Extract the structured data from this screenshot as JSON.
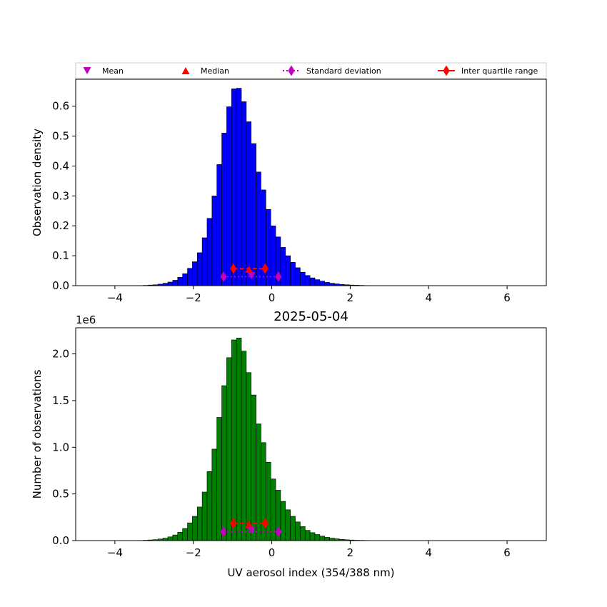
{
  "figure": {
    "width": 850,
    "height": 850
  },
  "legend": {
    "entries": [
      {
        "label": "Mean",
        "marker": "triangle-down",
        "color": "#bf00bf"
      },
      {
        "label": "Median",
        "marker": "triangle-up",
        "color": "#ff0000"
      },
      {
        "label": "Standard deviation",
        "marker": "diamond-dotted-line",
        "color": "#bf00bf"
      },
      {
        "label": "Inter quartile range",
        "marker": "diamond-dashed-line",
        "color": "#ff0000"
      }
    ]
  },
  "chart_data": [
    {
      "type": "bar",
      "title": "",
      "xlabel": "",
      "ylabel": "Observation density",
      "xlim": [
        -5,
        7
      ],
      "ylim": [
        0,
        0.69
      ],
      "xticks": [
        -4,
        -2,
        0,
        2,
        4,
        6
      ],
      "xtick_labels": [
        "−4",
        "−2",
        "0",
        "2",
        "4",
        "6"
      ],
      "yticks": [
        0.0,
        0.1,
        0.2,
        0.3,
        0.4,
        0.5,
        0.6
      ],
      "ytick_labels": [
        "0.0",
        "0.1",
        "0.2",
        "0.3",
        "0.4",
        "0.5",
        "0.6"
      ],
      "bar_color": "#0000ff",
      "bin_start": -3.4,
      "bin_width": 0.125,
      "values": [
        0.0005,
        0.001,
        0.002,
        0.003,
        0.005,
        0.008,
        0.012,
        0.018,
        0.028,
        0.04,
        0.058,
        0.08,
        0.11,
        0.16,
        0.225,
        0.3,
        0.405,
        0.51,
        0.598,
        0.658,
        0.66,
        0.615,
        0.548,
        0.475,
        0.38,
        0.32,
        0.255,
        0.2,
        0.163,
        0.128,
        0.1,
        0.078,
        0.06,
        0.045,
        0.034,
        0.026,
        0.02,
        0.015,
        0.011,
        0.008,
        0.006,
        0.004,
        0.003,
        0.002,
        0.0015,
        0.001,
        0.0005
      ],
      "stats": {
        "mean": {
          "x": -0.52,
          "y": 0.033
        },
        "median": {
          "x": -0.58,
          "y": 0.055
        },
        "std_dev": {
          "x": [
            -1.23,
            0.17
          ],
          "y": 0.03
        },
        "iqr": {
          "x": [
            -0.98,
            -0.17
          ],
          "y": 0.057
        }
      }
    },
    {
      "type": "bar",
      "title": "2025-05-04",
      "xlabel": "UV aerosol index (354/388 nm)",
      "ylabel": "Number of observations",
      "offset_label": "1e6",
      "xlim": [
        -5,
        7
      ],
      "ylim": [
        0,
        2.28
      ],
      "xticks": [
        -4,
        -2,
        0,
        2,
        4,
        6
      ],
      "xtick_labels": [
        "−4",
        "−2",
        "0",
        "2",
        "4",
        "6"
      ],
      "yticks": [
        0.0,
        0.5,
        1.0,
        1.5,
        2.0
      ],
      "ytick_labels": [
        "0.0",
        "0.5",
        "1.0",
        "1.5",
        "2.0"
      ],
      "bar_color": "#008000",
      "bin_start": -3.4,
      "bin_width": 0.125,
      "values": [
        0.002,
        0.004,
        0.007,
        0.01,
        0.017,
        0.026,
        0.04,
        0.06,
        0.09,
        0.13,
        0.19,
        0.26,
        0.36,
        0.52,
        0.74,
        0.98,
        1.32,
        1.66,
        1.96,
        2.15,
        2.17,
        2.03,
        1.8,
        1.56,
        1.25,
        1.05,
        0.84,
        0.66,
        0.54,
        0.42,
        0.33,
        0.26,
        0.2,
        0.15,
        0.11,
        0.085,
        0.065,
        0.048,
        0.035,
        0.026,
        0.019,
        0.013,
        0.009,
        0.006,
        0.004,
        0.003,
        0.002
      ],
      "stats": {
        "mean": {
          "x": -0.52,
          "y": 0.11
        },
        "median": {
          "x": -0.58,
          "y": 0.175
        },
        "std_dev": {
          "x": [
            -1.23,
            0.17
          ],
          "y": 0.095
        },
        "iqr": {
          "x": [
            -0.98,
            -0.17
          ],
          "y": 0.185
        }
      }
    }
  ]
}
